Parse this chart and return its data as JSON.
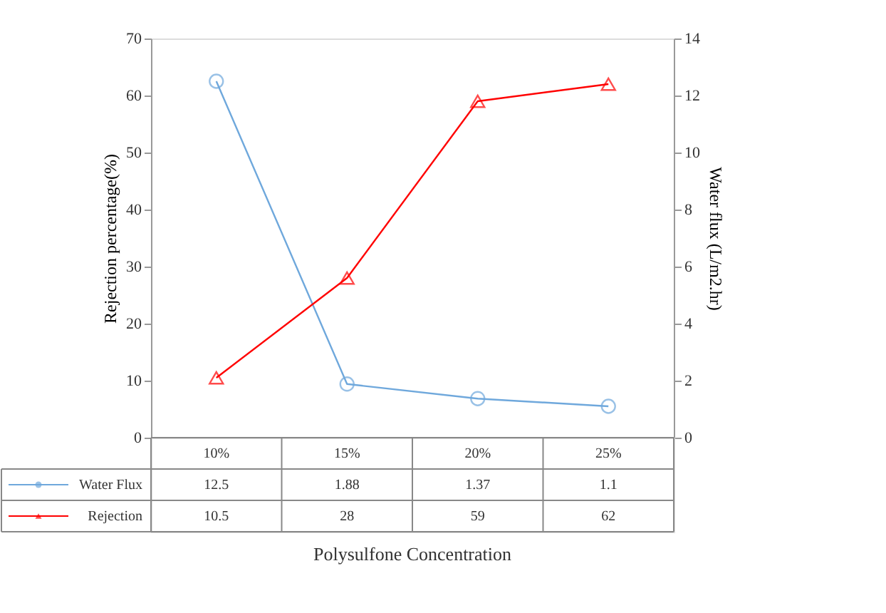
{
  "chart_data": {
    "type": "line",
    "categories": [
      "10%",
      "15%",
      "20%",
      "25%"
    ],
    "series": [
      {
        "name": "Water Flux",
        "color": "#6fa8dc",
        "values": [
          12.5,
          1.88,
          1.37,
          1.1
        ],
        "axis": "y2",
        "marker": "circle"
      },
      {
        "name": "Rejection",
        "color": "#ff0000",
        "values": [
          10.5,
          28,
          59,
          62
        ],
        "marker": "triangle"
      }
    ],
    "xlabel": "Polysulfone Concentration",
    "ylabel": "Rejection percentage(%)",
    "y2label": "Water flux (L/m2.hr)",
    "ylim": [
      0,
      70
    ],
    "yticks": [
      0,
      10,
      20,
      30,
      40,
      50,
      60,
      70
    ],
    "y2lim": [
      0,
      14
    ],
    "y2ticks": [
      0,
      2,
      4,
      6,
      8,
      10,
      12,
      14
    ],
    "grid": false,
    "legend": "bottom",
    "data_labels": true,
    "line_style": "solid"
  }
}
